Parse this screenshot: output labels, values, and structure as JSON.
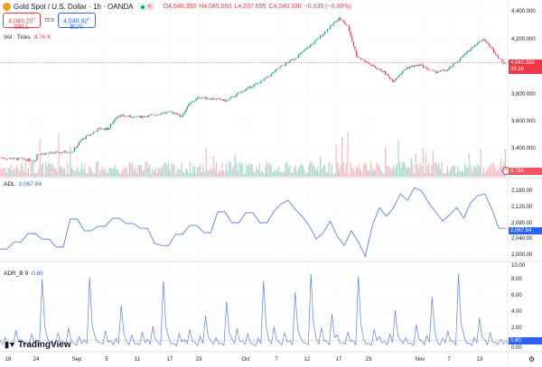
{
  "header": {
    "title": "Gold Spot / U.S. Dollar · 1h · OANDA",
    "open": "O4,040.350",
    "high": "H4,045.050",
    "low": "L4,037.695",
    "close": "C4,040.330",
    "change": "−0.035 (−0.00%)"
  },
  "trade": {
    "sell_price": "4,040.20",
    "sell_sup": "0",
    "sell_label": "SELL",
    "spread": "72.0",
    "buy_price": "4,040.92",
    "buy_sup": "0",
    "buy_label": "BUY"
  },
  "volume": {
    "label": "Vol · Ticks",
    "value": "8.76 K",
    "tag": "8.76K"
  },
  "adl": {
    "label": "ADL",
    "value": "2,067.84",
    "tag": "2,067.84",
    "ticks": [
      "2,160.00",
      "2,120.00",
      "2,080.00",
      "2,040.00",
      "2,000.00"
    ]
  },
  "adr": {
    "label": "ADR_B 9",
    "value": "0.80",
    "tag": "0.80",
    "ticks": [
      "10.00",
      "8.00",
      "6.00",
      "4.00",
      "2.00",
      "0.00"
    ]
  },
  "price_axis": {
    "ticks": [
      "4,400.000",
      "4,200.000",
      "3,800.000",
      "3,600.000",
      "3,400.000"
    ],
    "last_price": "4,040.330",
    "countdown": "39:16"
  },
  "time_axis": [
    "19",
    "24",
    "Sep",
    "5",
    "11",
    "17",
    "23",
    "Oct",
    "7",
    "12",
    "17",
    "23",
    "Nov",
    "7",
    "13"
  ],
  "branding": "TradingView",
  "colors": {
    "up": "#089981",
    "down": "#f23645",
    "line": "#2962ff"
  },
  "chart_data": [
    {
      "type": "candlestick",
      "title": "Gold Spot / U.S. Dollar · 1h",
      "ylim": [
        3300,
        4400
      ],
      "points": [
        [
          0,
          3341
        ],
        [
          6.8,
          3321
        ],
        [
          6.9,
          3367
        ],
        [
          13.6,
          3387
        ],
        [
          15.3,
          3473
        ],
        [
          18.6,
          3553
        ],
        [
          20.3,
          3553
        ],
        [
          22,
          3652
        ],
        [
          25.4,
          3639
        ],
        [
          28.8,
          3652
        ],
        [
          30.5,
          3672
        ],
        [
          33,
          3672
        ],
        [
          33.9,
          3639
        ],
        [
          35.6,
          3738
        ],
        [
          37.3,
          3784
        ],
        [
          40.7,
          3771
        ],
        [
          42.4,
          3758
        ],
        [
          45.8,
          3837
        ],
        [
          49.2,
          3904
        ],
        [
          52.5,
          4003
        ],
        [
          55.9,
          4089
        ],
        [
          59.3,
          4201
        ],
        [
          61.9,
          4301
        ],
        [
          63.6,
          4367
        ],
        [
          65.3,
          4301
        ],
        [
          66.9,
          4089
        ],
        [
          69.5,
          4023
        ],
        [
          72,
          3970
        ],
        [
          73.7,
          3904
        ],
        [
          76.3,
          4003
        ],
        [
          78.8,
          4023
        ],
        [
          81.4,
          3970
        ],
        [
          83.9,
          3983
        ],
        [
          86.4,
          4069
        ],
        [
          89,
          4168
        ],
        [
          90.7,
          4215
        ],
        [
          92.4,
          4135
        ],
        [
          94.1,
          4049
        ],
        [
          94.9,
          4036
        ]
      ]
    },
    {
      "type": "line",
      "name": "ADL",
      "ylim": [
        1990,
        2175
      ],
      "values": [
        2015,
        2015,
        2033,
        2033,
        2054,
        2054,
        2040,
        2040,
        2020,
        2020,
        2090,
        2090,
        2061,
        2061,
        2072,
        2072,
        2092,
        2092,
        2079,
        2079,
        2067,
        2067,
        2029,
        2024,
        2024,
        2052,
        2052,
        2074,
        2074,
        2056,
        2056,
        2108,
        2108,
        2081,
        2081,
        2106,
        2106,
        2081,
        2081,
        2110,
        2128,
        2137,
        2115,
        2097,
        2074,
        2040,
        2056,
        2085,
        2047,
        2024,
        2061,
        2033,
        1997,
        2074,
        2119,
        2097,
        2119,
        2153,
        2137,
        2169,
        2160,
        2131,
        2108,
        2085,
        2101,
        2119,
        2092,
        2131,
        2149,
        2153,
        2115,
        2067,
        2067
      ]
    },
    {
      "type": "line",
      "name": "ADR_B 9",
      "ylim": [
        0,
        10.5
      ],
      "values": [
        0.8,
        1.2,
        0.5,
        2.1,
        1.0,
        0.4,
        1.6,
        0.9,
        8.4,
        1.1,
        0.6,
        1.8,
        0.7,
        2.4,
        0.5,
        1.3,
        0.9,
        8.6,
        1.4,
        0.6,
        2.0,
        0.8,
        1.1,
        5.2,
        0.7,
        1.5,
        0.4,
        1.9,
        1.0,
        2.6,
        0.6,
        8.1,
        1.2,
        0.5,
        1.7,
        0.9,
        2.2,
        0.6,
        1.4,
        3.9,
        0.8,
        1.2,
        0.5,
        5.6,
        1.0,
        2.3,
        0.7,
        1.6,
        0.4,
        1.1,
        8.2,
        0.9,
        2.5,
        0.6,
        1.8,
        0.8,
        6.8,
        1.3,
        0.5,
        9.0,
        1.1,
        2.4,
        0.7,
        4.1,
        1.5,
        0.6,
        1.9,
        0.8,
        8.7,
        1.0,
        0.5,
        2.2,
        1.3,
        0.7,
        1.6,
        4.6,
        0.9,
        1.2,
        0.5,
        2.8,
        0.8,
        1.4,
        6.2,
        0.6,
        1.1,
        2.0,
        0.7,
        9.1,
        1.6,
        0.5,
        1.2,
        3.6,
        0.9,
        1.8,
        0.6,
        1.0,
        0.8
      ]
    }
  ]
}
